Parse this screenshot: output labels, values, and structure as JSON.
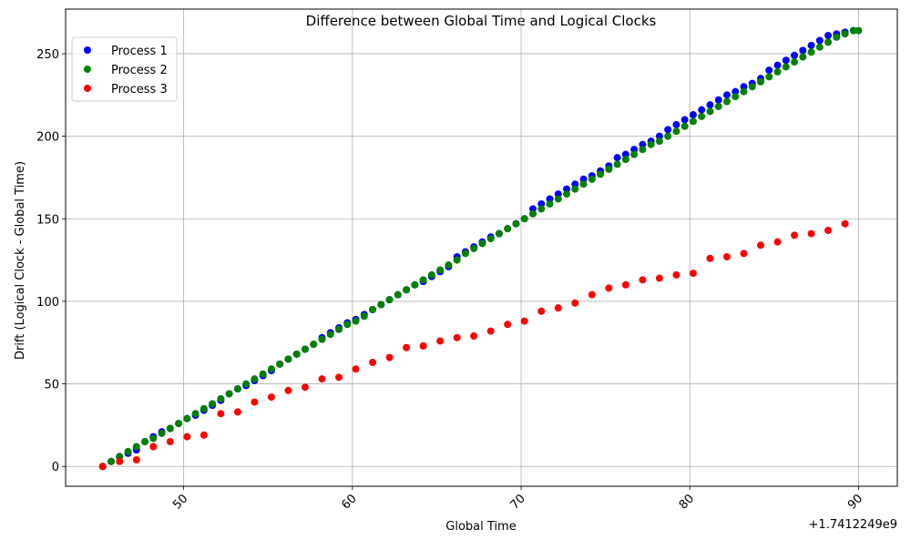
{
  "chart_data": {
    "type": "scatter",
    "title": "Difference between Global Time and Logical Clocks",
    "xlabel": "Global Time",
    "ylabel": "Drift (Logical Clock - Global Time)",
    "x_offset_label": "+1.7412249e9",
    "xlim": [
      43,
      92.3
    ],
    "ylim": [
      -12,
      277
    ],
    "x_ticks": [
      50,
      60,
      70,
      80,
      90
    ],
    "x_tick_labels": [
      "50",
      "60",
      "70",
      "80",
      "90"
    ],
    "x_tick_rotation_deg": 45,
    "y_ticks": [
      0,
      50,
      100,
      150,
      200,
      250
    ],
    "y_tick_labels": [
      "0",
      "50",
      "100",
      "150",
      "200",
      "250"
    ],
    "grid": true,
    "legend_position": "top-left",
    "series": [
      {
        "name": "Process 1",
        "color": "#0000ff",
        "x": [
          45.2,
          45.7,
          46.2,
          46.7,
          47.2,
          47.7,
          48.2,
          48.7,
          49.2,
          49.7,
          50.2,
          50.7,
          51.2,
          51.7,
          52.2,
          52.7,
          53.2,
          53.7,
          54.2,
          54.7,
          55.2,
          55.7,
          56.2,
          56.7,
          57.2,
          57.7,
          58.2,
          58.7,
          59.2,
          59.7,
          60.2,
          60.7,
          61.2,
          61.7,
          62.2,
          62.7,
          63.2,
          63.7,
          64.2,
          64.7,
          65.2,
          65.7,
          66.2,
          66.7,
          67.2,
          67.7,
          68.2,
          68.7,
          69.2,
          69.7,
          70.2,
          70.7,
          71.2,
          71.7,
          72.2,
          72.7,
          73.2,
          73.7,
          74.2,
          74.7,
          75.2,
          75.7,
          76.2,
          76.7,
          77.2,
          77.7,
          78.2,
          78.7,
          79.2,
          79.7,
          80.2,
          80.7,
          81.2,
          81.7,
          82.2,
          82.7,
          83.2,
          83.7,
          84.2,
          84.7,
          85.2,
          85.7,
          86.2,
          86.7,
          87.2,
          87.7,
          88.2,
          88.7,
          89.2,
          89.7
        ],
        "y": [
          0,
          3,
          6,
          8,
          10,
          15,
          18,
          21,
          23,
          26,
          29,
          31,
          34,
          37,
          40,
          44,
          47,
          49,
          52,
          55,
          58,
          62,
          65,
          68,
          71,
          74,
          78,
          81,
          84,
          87,
          89,
          92,
          95,
          98,
          101,
          104,
          107,
          110,
          112,
          115,
          118,
          121,
          127,
          130,
          133,
          136,
          139,
          141,
          144,
          147,
          150,
          156,
          159,
          162,
          165,
          168,
          171,
          174,
          176,
          179,
          182,
          187,
          189,
          192,
          195,
          197,
          200,
          204,
          207,
          210,
          213,
          216,
          219,
          222,
          225,
          227,
          230,
          232,
          235,
          240,
          243,
          246,
          249,
          252,
          255,
          258,
          261,
          262,
          263,
          264
        ]
      },
      {
        "name": "Process 2",
        "color": "#008000",
        "x": [
          45.2,
          45.7,
          46.2,
          46.7,
          47.2,
          47.7,
          48.2,
          48.7,
          49.2,
          49.7,
          50.2,
          50.7,
          51.2,
          51.7,
          52.2,
          52.7,
          53.2,
          53.7,
          54.2,
          54.7,
          55.2,
          55.7,
          56.2,
          56.7,
          57.2,
          57.7,
          58.2,
          58.7,
          59.2,
          59.7,
          60.2,
          60.7,
          61.2,
          61.7,
          62.2,
          62.7,
          63.2,
          63.7,
          64.2,
          64.7,
          65.2,
          65.7,
          66.2,
          66.7,
          67.2,
          67.7,
          68.2,
          68.7,
          69.2,
          69.7,
          70.2,
          70.7,
          71.2,
          71.7,
          72.2,
          72.7,
          73.2,
          73.7,
          74.2,
          74.7,
          75.2,
          75.7,
          76.2,
          76.7,
          77.2,
          77.7,
          78.2,
          78.7,
          79.2,
          79.7,
          80.2,
          80.7,
          81.2,
          81.7,
          82.2,
          82.7,
          83.2,
          83.7,
          84.2,
          84.7,
          85.2,
          85.7,
          86.2,
          86.7,
          87.2,
          87.7,
          88.2,
          88.7,
          89.2,
          89.7,
          90.0
        ],
        "y": [
          0,
          3,
          6,
          9,
          12,
          15,
          17,
          20,
          23,
          26,
          29,
          32,
          35,
          38,
          41,
          44,
          47,
          50,
          53,
          56,
          59,
          62,
          65,
          68,
          71,
          74,
          77,
          80,
          83,
          86,
          88,
          91,
          95,
          98,
          101,
          104,
          107,
          110,
          113,
          116,
          119,
          122,
          125,
          129,
          132,
          135,
          138,
          141,
          144,
          147,
          150,
          153,
          156,
          159,
          162,
          165,
          168,
          171,
          174,
          177,
          180,
          183,
          186,
          189,
          192,
          195,
          197,
          200,
          203,
          206,
          209,
          212,
          215,
          218,
          221,
          224,
          227,
          230,
          233,
          236,
          239,
          242,
          245,
          248,
          251,
          254,
          257,
          260,
          262,
          264,
          264
        ]
      },
      {
        "name": "Process 3",
        "color": "#ff0000",
        "x": [
          45.2,
          46.2,
          47.2,
          48.2,
          49.2,
          50.2,
          51.2,
          52.2,
          53.2,
          54.2,
          55.2,
          56.2,
          57.2,
          58.2,
          59.2,
          60.2,
          61.2,
          62.2,
          63.2,
          64.2,
          65.2,
          66.2,
          67.2,
          68.2,
          69.2,
          70.2,
          71.2,
          72.2,
          73.2,
          74.2,
          75.2,
          76.2,
          77.2,
          78.2,
          79.2,
          80.2,
          81.2,
          82.2,
          83.2,
          84.2,
          85.2,
          86.2,
          87.2,
          88.2,
          89.2
        ],
        "y": [
          0,
          3,
          4,
          12,
          15,
          18,
          19,
          32,
          33,
          39,
          42,
          46,
          48,
          53,
          54,
          59,
          63,
          66,
          72,
          73,
          76,
          78,
          79,
          82,
          86,
          88,
          94,
          96,
          99,
          104,
          108,
          110,
          113,
          114,
          116,
          117,
          126,
          127,
          129,
          134,
          136,
          140,
          141,
          143,
          147
        ]
      }
    ]
  }
}
